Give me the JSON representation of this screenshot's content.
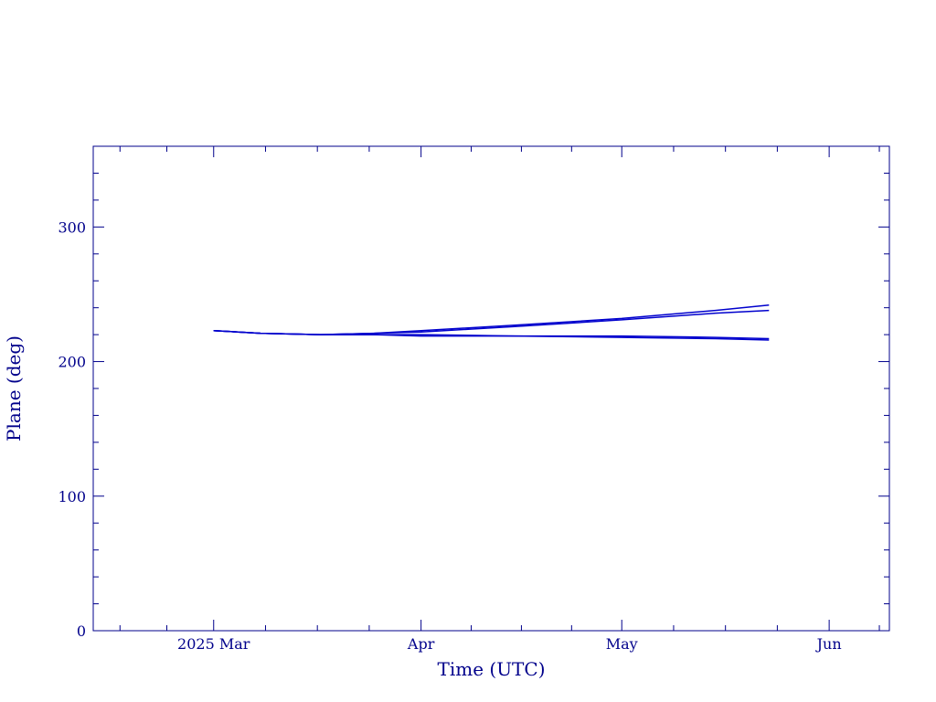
{
  "chart_data": {
    "type": "line",
    "title": "",
    "xlabel": "Time (UTC)",
    "ylabel": "Plane (deg)",
    "x_ticks": [
      "2025 Mar",
      "Apr",
      "May",
      "Jun"
    ],
    "x_tick_dates": [
      "2025-03-01",
      "2025-04-01",
      "2025-05-01",
      "2025-06-01"
    ],
    "xlim": [
      "2025-02-11",
      "2025-06-10"
    ],
    "y_ticks": [
      "0",
      "100",
      "200",
      "300"
    ],
    "ylim": [
      0,
      360
    ],
    "grid": false,
    "colors": {
      "axis": "#00008b",
      "line": "#0000cd"
    },
    "series": [
      {
        "x": [
          "2025-03-01",
          "2025-03-08",
          "2025-03-17",
          "2025-03-25",
          "2025-04-01",
          "2025-04-15",
          "2025-05-01",
          "2025-05-15",
          "2025-05-23"
        ],
        "y": [
          223,
          221,
          220,
          221,
          223,
          227,
          232,
          238,
          242
        ]
      },
      {
        "x": [
          "2025-03-01",
          "2025-03-08",
          "2025-03-17",
          "2025-03-25",
          "2025-04-01",
          "2025-04-15",
          "2025-05-01",
          "2025-05-15",
          "2025-05-23"
        ],
        "y": [
          223,
          221,
          220,
          221,
          222,
          226,
          231,
          236,
          238
        ]
      },
      {
        "x": [
          "2025-03-01",
          "2025-03-08",
          "2025-03-17",
          "2025-03-25",
          "2025-04-01",
          "2025-04-15",
          "2025-05-01",
          "2025-05-15",
          "2025-05-23"
        ],
        "y": [
          223,
          221,
          220,
          220,
          219,
          219,
          218,
          217,
          216
        ]
      },
      {
        "x": [
          "2025-03-01",
          "2025-03-08",
          "2025-03-17",
          "2025-03-25",
          "2025-04-01",
          "2025-04-15",
          "2025-05-01",
          "2025-05-15",
          "2025-05-23"
        ],
        "y": [
          223,
          221,
          220,
          220,
          220,
          219,
          219,
          218,
          217
        ]
      }
    ]
  }
}
